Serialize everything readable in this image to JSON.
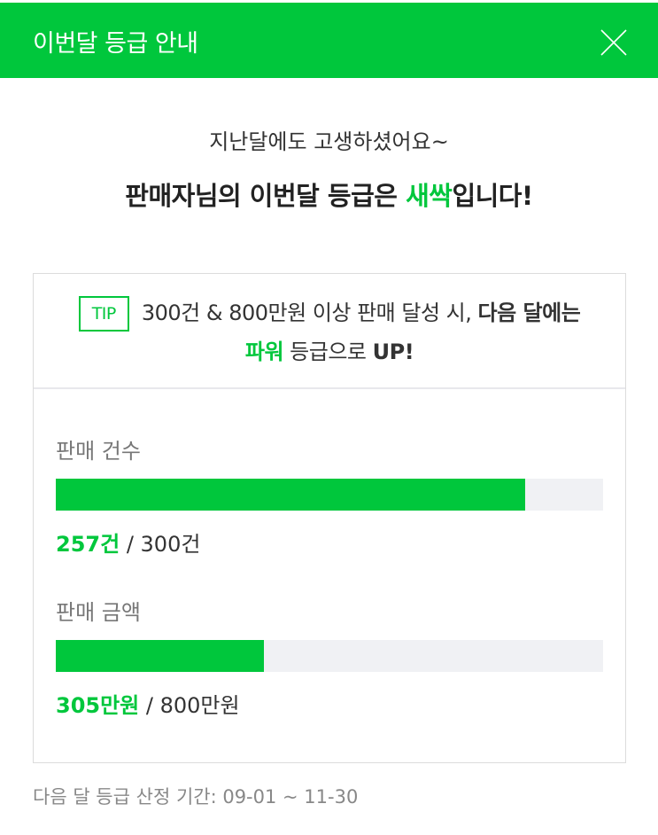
{
  "header": {
    "title": "이번달 등급 안내",
    "close_icon": "close-icon"
  },
  "greeting": "지난달에도 고생하셨어요~",
  "headline": {
    "prefix": "판매자님의 이번달 등급은 ",
    "grade": "새싹",
    "suffix": "입니다!"
  },
  "tip": {
    "badge": "TIP",
    "text1": "300건 & 800만원 이상 판매 달성 시, ",
    "bold1": "다음 달에는 ",
    "grade": "파워",
    "text2": " 등급으로 ",
    "bold2": "UP!"
  },
  "stats": [
    {
      "label": "판매 건수",
      "current": "257건",
      "target": "300건",
      "progress": 0.857
    },
    {
      "label": "판매 금액",
      "current": "305만원",
      "target": "800만원",
      "progress": 0.381
    }
  ],
  "footer": "다음 달 등급 산정 기간: 09-01 ~ 11-30",
  "colors": {
    "accent": "#00c73c",
    "track": "#f0f1f4"
  }
}
